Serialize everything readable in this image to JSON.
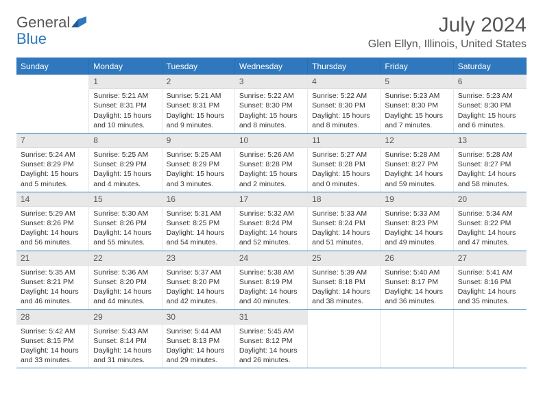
{
  "logo": {
    "general": "General",
    "blue": "Blue"
  },
  "title": "July 2024",
  "location": "Glen Ellyn, Illinois, United States",
  "colors": {
    "header_bg": "#2f78bd",
    "daynum_bg": "#e8e8e8",
    "text": "#333333",
    "muted": "#555555"
  },
  "day_labels": [
    "Sunday",
    "Monday",
    "Tuesday",
    "Wednesday",
    "Thursday",
    "Friday",
    "Saturday"
  ],
  "weeks": [
    [
      null,
      {
        "n": "1",
        "sr": "Sunrise: 5:21 AM",
        "ss": "Sunset: 8:31 PM",
        "dl": "Daylight: 15 hours and 10 minutes."
      },
      {
        "n": "2",
        "sr": "Sunrise: 5:21 AM",
        "ss": "Sunset: 8:31 PM",
        "dl": "Daylight: 15 hours and 9 minutes."
      },
      {
        "n": "3",
        "sr": "Sunrise: 5:22 AM",
        "ss": "Sunset: 8:30 PM",
        "dl": "Daylight: 15 hours and 8 minutes."
      },
      {
        "n": "4",
        "sr": "Sunrise: 5:22 AM",
        "ss": "Sunset: 8:30 PM",
        "dl": "Daylight: 15 hours and 8 minutes."
      },
      {
        "n": "5",
        "sr": "Sunrise: 5:23 AM",
        "ss": "Sunset: 8:30 PM",
        "dl": "Daylight: 15 hours and 7 minutes."
      },
      {
        "n": "6",
        "sr": "Sunrise: 5:23 AM",
        "ss": "Sunset: 8:30 PM",
        "dl": "Daylight: 15 hours and 6 minutes."
      }
    ],
    [
      {
        "n": "7",
        "sr": "Sunrise: 5:24 AM",
        "ss": "Sunset: 8:29 PM",
        "dl": "Daylight: 15 hours and 5 minutes."
      },
      {
        "n": "8",
        "sr": "Sunrise: 5:25 AM",
        "ss": "Sunset: 8:29 PM",
        "dl": "Daylight: 15 hours and 4 minutes."
      },
      {
        "n": "9",
        "sr": "Sunrise: 5:25 AM",
        "ss": "Sunset: 8:29 PM",
        "dl": "Daylight: 15 hours and 3 minutes."
      },
      {
        "n": "10",
        "sr": "Sunrise: 5:26 AM",
        "ss": "Sunset: 8:28 PM",
        "dl": "Daylight: 15 hours and 2 minutes."
      },
      {
        "n": "11",
        "sr": "Sunrise: 5:27 AM",
        "ss": "Sunset: 8:28 PM",
        "dl": "Daylight: 15 hours and 0 minutes."
      },
      {
        "n": "12",
        "sr": "Sunrise: 5:28 AM",
        "ss": "Sunset: 8:27 PM",
        "dl": "Daylight: 14 hours and 59 minutes."
      },
      {
        "n": "13",
        "sr": "Sunrise: 5:28 AM",
        "ss": "Sunset: 8:27 PM",
        "dl": "Daylight: 14 hours and 58 minutes."
      }
    ],
    [
      {
        "n": "14",
        "sr": "Sunrise: 5:29 AM",
        "ss": "Sunset: 8:26 PM",
        "dl": "Daylight: 14 hours and 56 minutes."
      },
      {
        "n": "15",
        "sr": "Sunrise: 5:30 AM",
        "ss": "Sunset: 8:26 PM",
        "dl": "Daylight: 14 hours and 55 minutes."
      },
      {
        "n": "16",
        "sr": "Sunrise: 5:31 AM",
        "ss": "Sunset: 8:25 PM",
        "dl": "Daylight: 14 hours and 54 minutes."
      },
      {
        "n": "17",
        "sr": "Sunrise: 5:32 AM",
        "ss": "Sunset: 8:24 PM",
        "dl": "Daylight: 14 hours and 52 minutes."
      },
      {
        "n": "18",
        "sr": "Sunrise: 5:33 AM",
        "ss": "Sunset: 8:24 PM",
        "dl": "Daylight: 14 hours and 51 minutes."
      },
      {
        "n": "19",
        "sr": "Sunrise: 5:33 AM",
        "ss": "Sunset: 8:23 PM",
        "dl": "Daylight: 14 hours and 49 minutes."
      },
      {
        "n": "20",
        "sr": "Sunrise: 5:34 AM",
        "ss": "Sunset: 8:22 PM",
        "dl": "Daylight: 14 hours and 47 minutes."
      }
    ],
    [
      {
        "n": "21",
        "sr": "Sunrise: 5:35 AM",
        "ss": "Sunset: 8:21 PM",
        "dl": "Daylight: 14 hours and 46 minutes."
      },
      {
        "n": "22",
        "sr": "Sunrise: 5:36 AM",
        "ss": "Sunset: 8:20 PM",
        "dl": "Daylight: 14 hours and 44 minutes."
      },
      {
        "n": "23",
        "sr": "Sunrise: 5:37 AM",
        "ss": "Sunset: 8:20 PM",
        "dl": "Daylight: 14 hours and 42 minutes."
      },
      {
        "n": "24",
        "sr": "Sunrise: 5:38 AM",
        "ss": "Sunset: 8:19 PM",
        "dl": "Daylight: 14 hours and 40 minutes."
      },
      {
        "n": "25",
        "sr": "Sunrise: 5:39 AM",
        "ss": "Sunset: 8:18 PM",
        "dl": "Daylight: 14 hours and 38 minutes."
      },
      {
        "n": "26",
        "sr": "Sunrise: 5:40 AM",
        "ss": "Sunset: 8:17 PM",
        "dl": "Daylight: 14 hours and 36 minutes."
      },
      {
        "n": "27",
        "sr": "Sunrise: 5:41 AM",
        "ss": "Sunset: 8:16 PM",
        "dl": "Daylight: 14 hours and 35 minutes."
      }
    ],
    [
      {
        "n": "28",
        "sr": "Sunrise: 5:42 AM",
        "ss": "Sunset: 8:15 PM",
        "dl": "Daylight: 14 hours and 33 minutes."
      },
      {
        "n": "29",
        "sr": "Sunrise: 5:43 AM",
        "ss": "Sunset: 8:14 PM",
        "dl": "Daylight: 14 hours and 31 minutes."
      },
      {
        "n": "30",
        "sr": "Sunrise: 5:44 AM",
        "ss": "Sunset: 8:13 PM",
        "dl": "Daylight: 14 hours and 29 minutes."
      },
      {
        "n": "31",
        "sr": "Sunrise: 5:45 AM",
        "ss": "Sunset: 8:12 PM",
        "dl": "Daylight: 14 hours and 26 minutes."
      },
      null,
      null,
      null
    ]
  ]
}
